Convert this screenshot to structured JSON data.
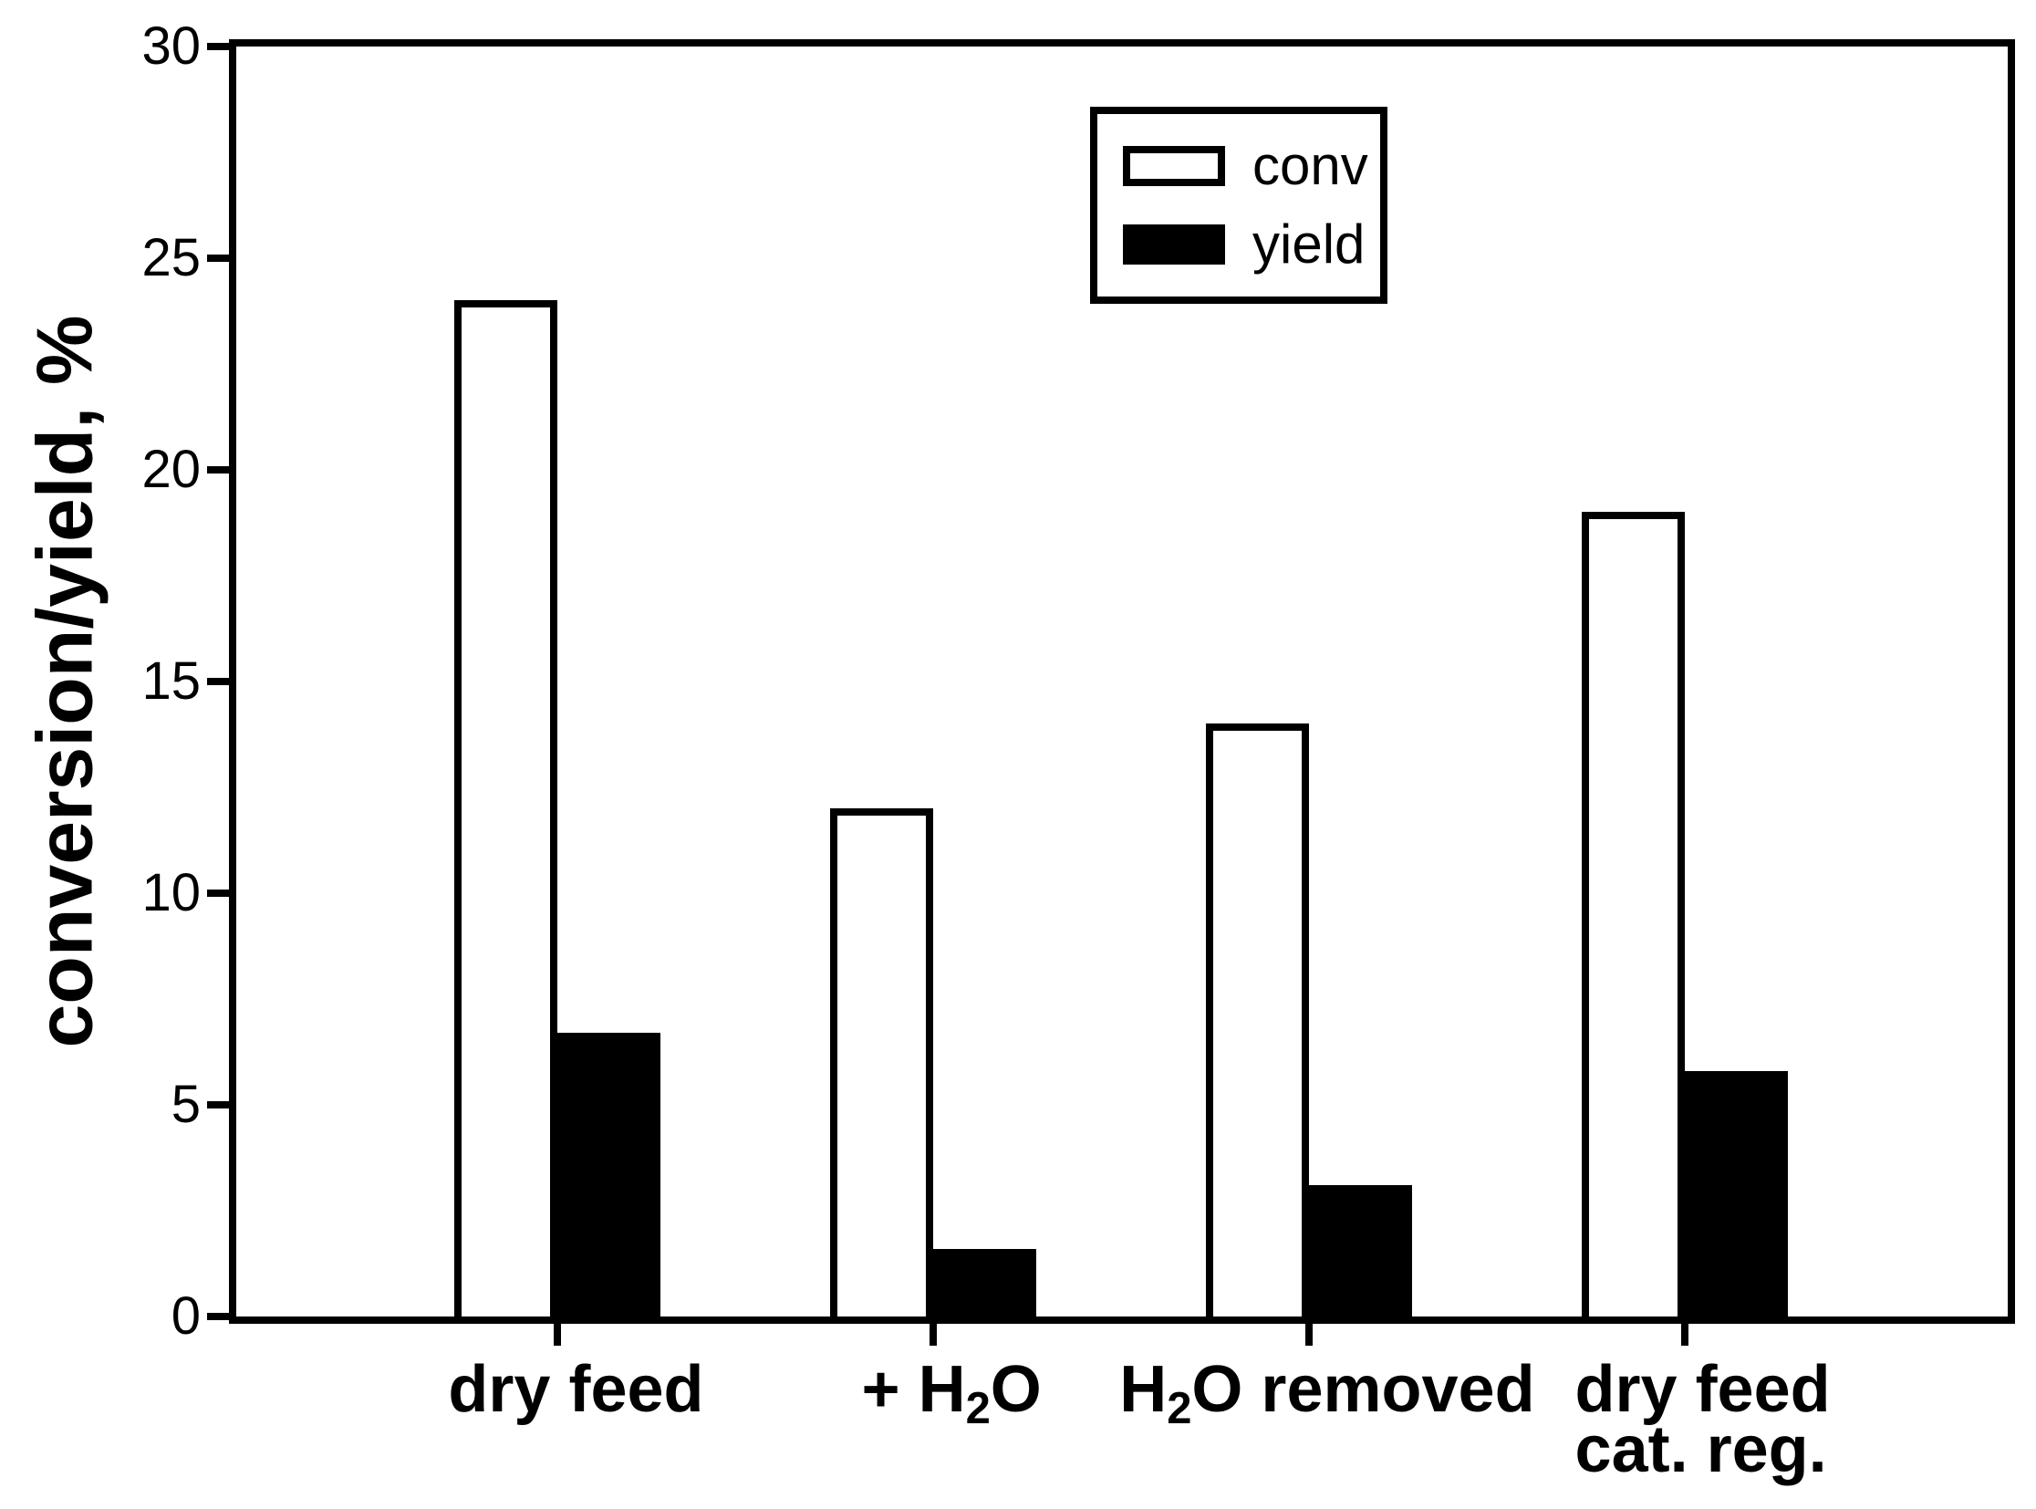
{
  "chart_data": {
    "type": "bar",
    "title": "",
    "xlabel": "",
    "ylabel": "conversion/yield, %",
    "ylim": [
      0,
      30
    ],
    "yticks": [
      0,
      5,
      10,
      15,
      20,
      25,
      30
    ],
    "grid": false,
    "legend_position": "top-center",
    "categories": [
      "dry feed",
      "+ H₂O",
      "H₂O removed",
      "dry feed cat. reg."
    ],
    "categories_rich": [
      {
        "lines": [
          [
            {
              "t": "dry feed"
            }
          ]
        ]
      },
      {
        "lines": [
          [
            {
              "t": "+ H"
            },
            {
              "t": "2",
              "sub": true
            },
            {
              "t": "O"
            }
          ]
        ]
      },
      {
        "lines": [
          [
            {
              "t": "H"
            },
            {
              "t": "2",
              "sub": true
            },
            {
              "t": "O removed"
            }
          ]
        ]
      },
      {
        "lines": [
          [
            {
              "t": "dry feed"
            }
          ],
          [
            {
              "t": "cat. reg."
            }
          ]
        ]
      }
    ],
    "series": [
      {
        "name": "conv",
        "swatch": "white",
        "fill": "#ffffff",
        "values": [
          24,
          12,
          14,
          19
        ]
      },
      {
        "name": "yield",
        "swatch": "black",
        "fill": "#000000",
        "values": [
          6.7,
          1.6,
          3.1,
          5.8
        ]
      }
    ]
  },
  "colors": {
    "foreground": "#000000",
    "background": "#ffffff"
  }
}
